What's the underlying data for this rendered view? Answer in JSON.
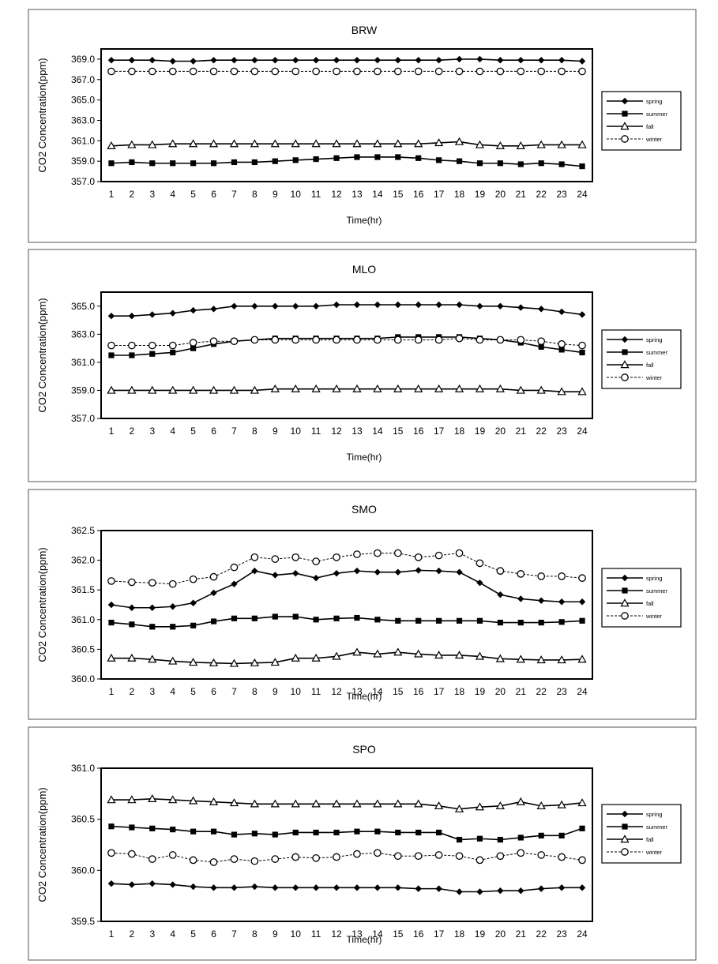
{
  "chart_data": [
    {
      "type": "line",
      "title": "BRW",
      "ylabel": "CO2 Concentration(ppm)",
      "xlabel": "Time(hr)",
      "ylim": [
        357.0,
        370.0
      ],
      "yticks": [
        "357.0",
        "359.0",
        "361.0",
        "363.0",
        "365.0",
        "367.0",
        "369.0"
      ],
      "categories": [
        "1",
        "2",
        "3",
        "4",
        "5",
        "6",
        "7",
        "8",
        "9",
        "10",
        "11",
        "12",
        "13",
        "14",
        "15",
        "16",
        "17",
        "18",
        "19",
        "20",
        "21",
        "22",
        "23",
        "24"
      ],
      "legend_position": "right",
      "grid": false,
      "series": [
        {
          "name": "spring",
          "marker": "diamond",
          "color": "#000000",
          "values": [
            368.9,
            368.9,
            368.9,
            368.8,
            368.8,
            368.9,
            368.9,
            368.9,
            368.9,
            368.9,
            368.9,
            368.9,
            368.9,
            368.9,
            368.9,
            368.9,
            368.9,
            369.0,
            369.0,
            368.9,
            368.9,
            368.9,
            368.9,
            368.8
          ]
        },
        {
          "name": "summer",
          "marker": "square",
          "color": "#000000",
          "values": [
            358.8,
            358.9,
            358.8,
            358.8,
            358.8,
            358.8,
            358.9,
            358.9,
            359.0,
            359.1,
            359.2,
            359.3,
            359.4,
            359.4,
            359.4,
            359.3,
            359.1,
            359.0,
            358.8,
            358.8,
            358.7,
            358.8,
            358.7,
            358.5
          ]
        },
        {
          "name": "fall",
          "marker": "triangle",
          "color": "#000000",
          "values": [
            360.5,
            360.6,
            360.6,
            360.7,
            360.7,
            360.7,
            360.7,
            360.7,
            360.7,
            360.7,
            360.7,
            360.7,
            360.7,
            360.7,
            360.7,
            360.7,
            360.8,
            360.9,
            360.6,
            360.5,
            360.5,
            360.6,
            360.6,
            360.6
          ]
        },
        {
          "name": "winter",
          "marker": "circle",
          "color": "#000000",
          "values": [
            367.8,
            367.8,
            367.8,
            367.8,
            367.8,
            367.8,
            367.8,
            367.8,
            367.8,
            367.8,
            367.8,
            367.8,
            367.8,
            367.8,
            367.8,
            367.8,
            367.8,
            367.8,
            367.8,
            367.8,
            367.8,
            367.8,
            367.8,
            367.8
          ]
        }
      ]
    },
    {
      "type": "line",
      "title": "MLO",
      "ylabel": "CO2 Concentration(ppm)",
      "xlabel": "Time(hr)",
      "ylim": [
        357.0,
        366.0
      ],
      "yticks": [
        "357.0",
        "359.0",
        "361.0",
        "363.0",
        "365.0"
      ],
      "categories": [
        "1",
        "2",
        "3",
        "4",
        "5",
        "6",
        "7",
        "8",
        "9",
        "10",
        "11",
        "12",
        "13",
        "14",
        "15",
        "16",
        "17",
        "18",
        "19",
        "20",
        "21",
        "22",
        "23",
        "24"
      ],
      "legend_position": "right",
      "grid": false,
      "series": [
        {
          "name": "spring",
          "marker": "diamond",
          "color": "#000000",
          "values": [
            364.3,
            364.3,
            364.4,
            364.5,
            364.7,
            364.8,
            365.0,
            365.0,
            365.0,
            365.0,
            365.0,
            365.1,
            365.1,
            365.1,
            365.1,
            365.1,
            365.1,
            365.1,
            365.0,
            365.0,
            364.9,
            364.8,
            364.6,
            364.4
          ]
        },
        {
          "name": "summer",
          "marker": "square",
          "color": "#000000",
          "values": [
            361.5,
            361.5,
            361.6,
            361.7,
            362.0,
            362.3,
            362.5,
            362.6,
            362.7,
            362.7,
            362.7,
            362.7,
            362.7,
            362.7,
            362.8,
            362.8,
            362.8,
            362.8,
            362.7,
            362.6,
            362.4,
            362.1,
            361.9,
            361.7
          ]
        },
        {
          "name": "fall",
          "marker": "triangle",
          "color": "#000000",
          "values": [
            359.0,
            359.0,
            359.0,
            359.0,
            359.0,
            359.0,
            359.0,
            359.0,
            359.1,
            359.1,
            359.1,
            359.1,
            359.1,
            359.1,
            359.1,
            359.1,
            359.1,
            359.1,
            359.1,
            359.1,
            359.0,
            359.0,
            358.9,
            358.9
          ]
        },
        {
          "name": "winter",
          "marker": "circle",
          "color": "#000000",
          "values": [
            362.2,
            362.2,
            362.2,
            362.2,
            362.4,
            362.5,
            362.5,
            362.6,
            362.6,
            362.6,
            362.6,
            362.6,
            362.6,
            362.6,
            362.6,
            362.6,
            362.6,
            362.7,
            362.6,
            362.6,
            362.6,
            362.5,
            362.3,
            362.2
          ]
        }
      ]
    },
    {
      "type": "line",
      "title": "SMO",
      "ylabel": "CO2 Concentration(ppm)",
      "xlabel": "Time(hr)",
      "ylim": [
        360.0,
        362.5
      ],
      "yticks": [
        "360.0",
        "360.5",
        "361.0",
        "361.5",
        "362.0",
        "362.5"
      ],
      "categories": [
        "1",
        "2",
        "3",
        "4",
        "5",
        "6",
        "7",
        "8",
        "9",
        "10",
        "11",
        "12",
        "13",
        "14",
        "15",
        "16",
        "17",
        "18",
        "19",
        "20",
        "21",
        "22",
        "23",
        "24"
      ],
      "legend_position": "right",
      "grid": false,
      "series": [
        {
          "name": "spring",
          "marker": "diamond",
          "color": "#000000",
          "values": [
            361.25,
            361.2,
            361.2,
            361.22,
            361.28,
            361.45,
            361.6,
            361.82,
            361.75,
            361.78,
            361.7,
            361.78,
            361.82,
            361.8,
            361.8,
            361.83,
            361.82,
            361.8,
            361.62,
            361.42,
            361.35,
            361.32,
            361.3,
            361.3
          ]
        },
        {
          "name": "summer",
          "marker": "square",
          "color": "#000000",
          "values": [
            360.95,
            360.92,
            360.88,
            360.88,
            360.9,
            360.97,
            361.02,
            361.02,
            361.05,
            361.05,
            361.0,
            361.02,
            361.03,
            361.0,
            360.98,
            360.98,
            360.98,
            360.98,
            360.98,
            360.95,
            360.95,
            360.95,
            360.96,
            360.98
          ]
        },
        {
          "name": "fall",
          "marker": "triangle",
          "color": "#000000",
          "values": [
            360.35,
            360.35,
            360.33,
            360.3,
            360.28,
            360.27,
            360.26,
            360.27,
            360.28,
            360.35,
            360.35,
            360.38,
            360.45,
            360.42,
            360.45,
            360.42,
            360.4,
            360.4,
            360.38,
            360.34,
            360.33,
            360.32,
            360.32,
            360.33
          ]
        },
        {
          "name": "winter",
          "marker": "circle",
          "color": "#000000",
          "values": [
            361.65,
            361.63,
            361.62,
            361.6,
            361.68,
            361.72,
            361.88,
            362.05,
            362.02,
            362.05,
            361.98,
            362.05,
            362.1,
            362.12,
            362.12,
            362.05,
            362.08,
            362.12,
            361.95,
            361.82,
            361.77,
            361.73,
            361.73,
            361.7
          ]
        }
      ]
    },
    {
      "type": "line",
      "title": "SPO",
      "ylabel": "CO2 Concentration(ppm)",
      "xlabel": "Time(hr)",
      "ylim": [
        359.5,
        361.0
      ],
      "yticks": [
        "359.5",
        "360.0",
        "360.5",
        "361.0"
      ],
      "categories": [
        "1",
        "2",
        "3",
        "4",
        "5",
        "6",
        "7",
        "8",
        "9",
        "10",
        "11",
        "12",
        "13",
        "14",
        "15",
        "16",
        "17",
        "18",
        "19",
        "20",
        "21",
        "22",
        "23",
        "24"
      ],
      "legend_position": "right",
      "grid": false,
      "series": [
        {
          "name": "spring",
          "marker": "diamond",
          "color": "#000000",
          "values": [
            359.87,
            359.86,
            359.87,
            359.86,
            359.84,
            359.83,
            359.83,
            359.84,
            359.83,
            359.83,
            359.83,
            359.83,
            359.83,
            359.83,
            359.83,
            359.82,
            359.82,
            359.79,
            359.79,
            359.8,
            359.8,
            359.82,
            359.83,
            359.83
          ]
        },
        {
          "name": "summer",
          "marker": "square",
          "color": "#000000",
          "values": [
            360.43,
            360.42,
            360.41,
            360.4,
            360.38,
            360.38,
            360.35,
            360.36,
            360.35,
            360.37,
            360.37,
            360.37,
            360.38,
            360.38,
            360.37,
            360.37,
            360.37,
            360.3,
            360.31,
            360.3,
            360.32,
            360.34,
            360.34,
            360.41
          ]
        },
        {
          "name": "fall",
          "marker": "triangle",
          "color": "#000000",
          "values": [
            360.69,
            360.69,
            360.7,
            360.69,
            360.68,
            360.67,
            360.66,
            360.65,
            360.65,
            360.65,
            360.65,
            360.65,
            360.65,
            360.65,
            360.65,
            360.65,
            360.63,
            360.6,
            360.62,
            360.63,
            360.67,
            360.63,
            360.64,
            360.66
          ]
        },
        {
          "name": "winter",
          "marker": "circle",
          "color": "#000000",
          "values": [
            360.17,
            360.16,
            360.11,
            360.15,
            360.1,
            360.08,
            360.11,
            360.09,
            360.11,
            360.13,
            360.12,
            360.13,
            360.16,
            360.17,
            360.14,
            360.14,
            360.15,
            360.14,
            360.1,
            360.14,
            360.17,
            360.15,
            360.13,
            360.1
          ]
        }
      ]
    }
  ]
}
